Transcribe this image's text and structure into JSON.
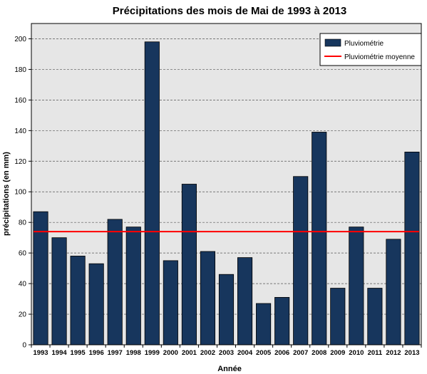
{
  "chart_data": {
    "type": "bar",
    "title": "Précipitations des mois de Mai de 1993 à 2013",
    "xlabel": "Année",
    "ylabel": "précipitations (en mm)",
    "categories": [
      "1993",
      "1994",
      "1995",
      "1996",
      "1997",
      "1998",
      "1999",
      "2000",
      "2001",
      "2002",
      "2003",
      "2004",
      "2005",
      "2006",
      "2007",
      "2008",
      "2009",
      "2010",
      "2011",
      "2012",
      "2013"
    ],
    "series": [
      {
        "name": "Pluviométrie",
        "color": "#17365d",
        "values": [
          87,
          70,
          58,
          53,
          82,
          77,
          198,
          55,
          105,
          61,
          46,
          57,
          27,
          31,
          110,
          139,
          37,
          77,
          37,
          69,
          126
        ]
      }
    ],
    "reference_lines": [
      {
        "name": "Pluviométrie moyenne",
        "value": 74,
        "color": "#ff0000"
      }
    ],
    "ylim": [
      0,
      210
    ],
    "yticks": [
      0,
      20,
      40,
      60,
      80,
      100,
      120,
      140,
      160,
      180,
      200
    ],
    "grid": true,
    "legend_position": "top-right",
    "plot_background": "#e6e6e6"
  }
}
